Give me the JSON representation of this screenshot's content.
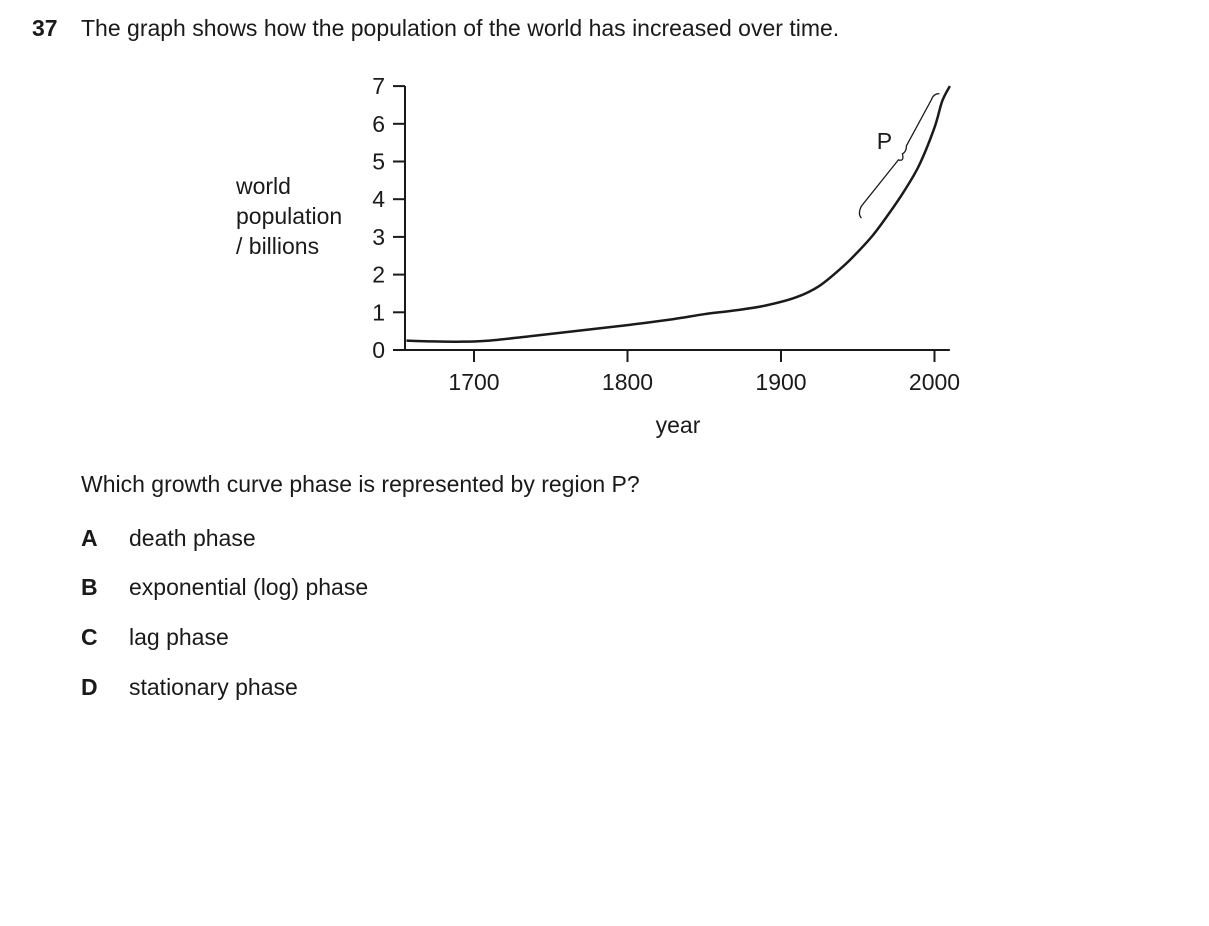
{
  "question": {
    "number": "37",
    "stem": "The graph shows how the population of the world has increased over time.",
    "prompt": "Which growth curve phase is represented by region P?",
    "options": [
      {
        "letter": "A",
        "text": "death phase"
      },
      {
        "letter": "B",
        "text": "exponential (log) phase"
      },
      {
        "letter": "C",
        "text": "lag phase"
      },
      {
        "letter": "D",
        "text": "stationary phase"
      }
    ]
  },
  "chart_data": {
    "type": "line",
    "title": "",
    "xlabel": "year",
    "ylabel_lines": [
      "world",
      "population",
      "/ billions"
    ],
    "xlim": [
      1656,
      2010
    ],
    "ylim": [
      0,
      7
    ],
    "x_ticks": [
      1700,
      1800,
      1900,
      2000
    ],
    "y_ticks": [
      0,
      1,
      2,
      3,
      4,
      5,
      6,
      7
    ],
    "grid": false,
    "series": [
      {
        "x": [
          1656,
          1670,
          1690,
          1710,
          1740,
          1770,
          1800,
          1830,
          1850,
          1870,
          1890,
          1910,
          1925,
          1940,
          1950,
          1960,
          1970,
          1980,
          1990,
          2000,
          2005,
          2010
        ],
        "y": [
          0.25,
          0.23,
          0.22,
          0.25,
          0.38,
          0.52,
          0.66,
          0.82,
          0.95,
          1.05,
          1.18,
          1.4,
          1.7,
          2.2,
          2.6,
          3.05,
          3.6,
          4.2,
          4.9,
          5.9,
          6.6,
          7.0
        ]
      }
    ],
    "annotations": [
      {
        "label": "P",
        "x_range": [
          1955,
          1998
        ],
        "y_range": [
          3.5,
          6.8
        ]
      }
    ]
  }
}
